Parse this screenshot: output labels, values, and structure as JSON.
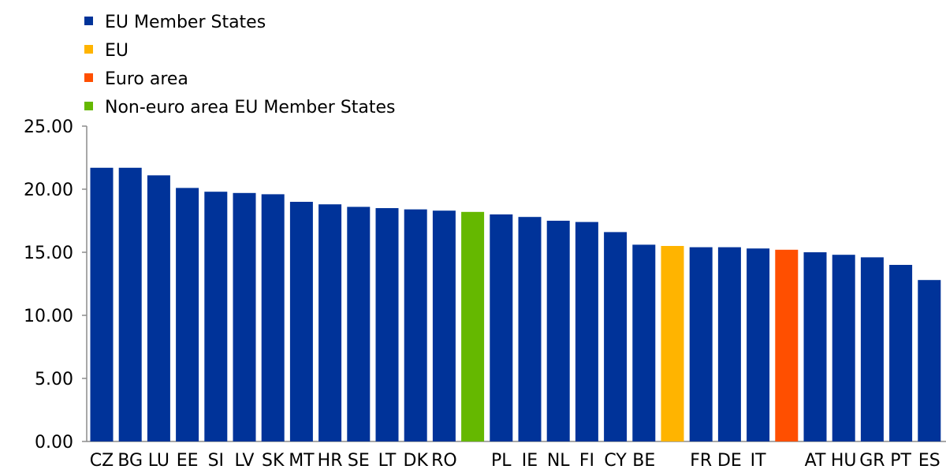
{
  "chart_data": {
    "type": "bar",
    "categories": [
      "CZ",
      "BG",
      "LU",
      "EE",
      "SI",
      "LV",
      "SK",
      "MT",
      "HR",
      "SE",
      "LT",
      "DK",
      "RO",
      "",
      "PL",
      "IE",
      "NL",
      "FI",
      "CY",
      "BE",
      "",
      "FR",
      "DE",
      "IT",
      "",
      "AT",
      "HU",
      "GR",
      "PT",
      "ES"
    ],
    "values": [
      21.7,
      21.7,
      21.1,
      20.1,
      19.8,
      19.7,
      19.6,
      19.0,
      18.8,
      18.6,
      18.5,
      18.4,
      18.3,
      18.2,
      18.0,
      17.8,
      17.5,
      17.4,
      16.6,
      15.6,
      15.5,
      15.4,
      15.4,
      15.3,
      15.2,
      15.0,
      14.8,
      14.6,
      14.0,
      12.8
    ],
    "groups": [
      "member",
      "member",
      "member",
      "member",
      "member",
      "member",
      "member",
      "member",
      "member",
      "member",
      "member",
      "member",
      "member",
      "nonEuro",
      "member",
      "member",
      "member",
      "member",
      "member",
      "member",
      "eu",
      "member",
      "member",
      "member",
      "euroArea",
      "member",
      "member",
      "member",
      "member",
      "member"
    ],
    "ylim": [
      0,
      25
    ],
    "yticks": [
      "0.00",
      "5.00",
      "10.00",
      "15.00",
      "20.00",
      "25.00"
    ],
    "ytick_values": [
      0,
      5,
      10,
      15,
      20,
      25
    ],
    "grid": false,
    "legend_placement": "top-left",
    "legend": [
      {
        "key": "member",
        "label": "EU Member States",
        "color": "#003399"
      },
      {
        "key": "eu",
        "label": "EU",
        "color": "#FFB400"
      },
      {
        "key": "euroArea",
        "label": "Euro area",
        "color": "#FF4F00"
      },
      {
        "key": "nonEuro",
        "label": "Non-euro area EU Member States",
        "color": "#65B800"
      }
    ]
  }
}
